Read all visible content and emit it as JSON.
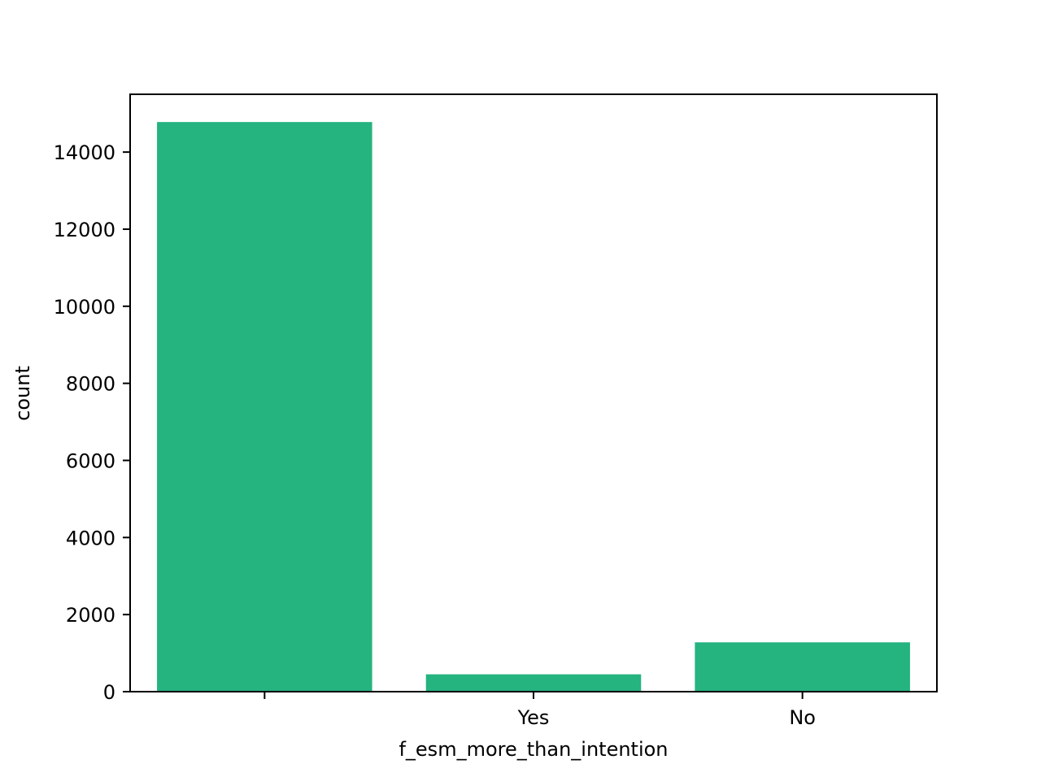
{
  "chart_data": {
    "type": "bar",
    "categories": [
      "",
      "Yes",
      "No"
    ],
    "values": [
      14780,
      450,
      1280
    ],
    "xlabel": "f_esm_more_than_intention",
    "ylabel": "count",
    "ylim": [
      0,
      15500
    ],
    "yticks": [
      0,
      2000,
      4000,
      6000,
      8000,
      10000,
      12000,
      14000
    ],
    "ytick_labels": [
      "0",
      "2000",
      "4000",
      "6000",
      "8000",
      "10000",
      "12000",
      "14000"
    ],
    "bar_color": "#25b380",
    "grid": false,
    "legend": "none"
  }
}
